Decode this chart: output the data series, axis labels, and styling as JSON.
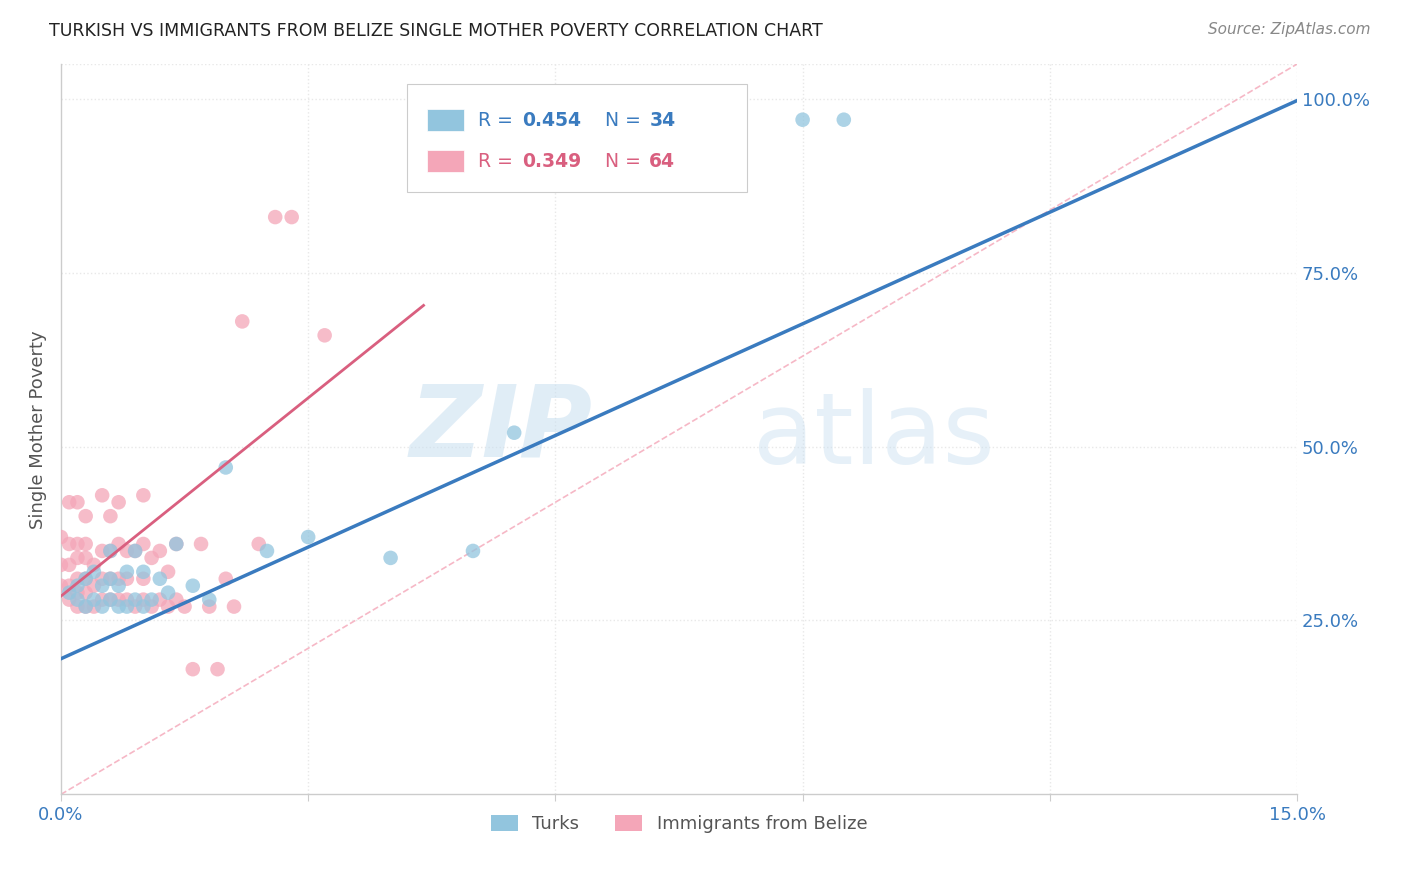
{
  "title": "TURKISH VS IMMIGRANTS FROM BELIZE SINGLE MOTHER POVERTY CORRELATION CHART",
  "source": "Source: ZipAtlas.com",
  "ylabel_label": "Single Mother Poverty",
  "x_min": 0.0,
  "x_max": 0.15,
  "y_min": 0.0,
  "y_max": 1.05,
  "blue_color": "#92c5de",
  "pink_color": "#f4a6b8",
  "blue_line_color": "#3a7bbf",
  "pink_line_color": "#d95f7f",
  "diagonal_line_color": "#f4a6b8",
  "blue_R": "0.454",
  "blue_N": "34",
  "pink_R": "0.349",
  "pink_N": "64",
  "blue_label": "Turks",
  "pink_label": "Immigrants from Belize",
  "turks_x": [
    0.001,
    0.002,
    0.002,
    0.003,
    0.003,
    0.004,
    0.004,
    0.005,
    0.005,
    0.006,
    0.006,
    0.006,
    0.007,
    0.007,
    0.008,
    0.008,
    0.009,
    0.009,
    0.01,
    0.01,
    0.011,
    0.012,
    0.013,
    0.014,
    0.016,
    0.018,
    0.02,
    0.025,
    0.03,
    0.04,
    0.05,
    0.055,
    0.09,
    0.095
  ],
  "turks_y": [
    0.29,
    0.28,
    0.3,
    0.27,
    0.31,
    0.28,
    0.32,
    0.27,
    0.3,
    0.28,
    0.31,
    0.35,
    0.27,
    0.3,
    0.27,
    0.32,
    0.28,
    0.35,
    0.27,
    0.32,
    0.28,
    0.31,
    0.29,
    0.36,
    0.3,
    0.28,
    0.47,
    0.35,
    0.37,
    0.34,
    0.35,
    0.52,
    0.97,
    0.97
  ],
  "belize_x": [
    0.0,
    0.0,
    0.0,
    0.001,
    0.001,
    0.001,
    0.001,
    0.001,
    0.002,
    0.002,
    0.002,
    0.002,
    0.002,
    0.002,
    0.003,
    0.003,
    0.003,
    0.003,
    0.003,
    0.003,
    0.004,
    0.004,
    0.004,
    0.005,
    0.005,
    0.005,
    0.005,
    0.006,
    0.006,
    0.006,
    0.006,
    0.007,
    0.007,
    0.007,
    0.007,
    0.008,
    0.008,
    0.008,
    0.009,
    0.009,
    0.01,
    0.01,
    0.01,
    0.01,
    0.011,
    0.011,
    0.012,
    0.012,
    0.013,
    0.013,
    0.014,
    0.014,
    0.015,
    0.016,
    0.017,
    0.018,
    0.019,
    0.02,
    0.021,
    0.022,
    0.024,
    0.026,
    0.028,
    0.032
  ],
  "belize_y": [
    0.3,
    0.33,
    0.37,
    0.28,
    0.3,
    0.33,
    0.36,
    0.42,
    0.27,
    0.29,
    0.31,
    0.34,
    0.36,
    0.42,
    0.27,
    0.29,
    0.31,
    0.34,
    0.36,
    0.4,
    0.27,
    0.3,
    0.33,
    0.28,
    0.31,
    0.35,
    0.43,
    0.28,
    0.31,
    0.35,
    0.4,
    0.28,
    0.31,
    0.36,
    0.42,
    0.28,
    0.31,
    0.35,
    0.27,
    0.35,
    0.28,
    0.31,
    0.36,
    0.43,
    0.27,
    0.34,
    0.28,
    0.35,
    0.27,
    0.32,
    0.28,
    0.36,
    0.27,
    0.18,
    0.36,
    0.27,
    0.18,
    0.31,
    0.27,
    0.68,
    0.36,
    0.83,
    0.83,
    0.66
  ],
  "watermark_zip": "ZIP",
  "watermark_atlas": "atlas",
  "background_color": "#ffffff",
  "grid_color": "#e8e8e8",
  "blue_line_intercept": 0.195,
  "blue_line_slope": 5.35,
  "pink_line_intercept": 0.285,
  "pink_line_slope": 9.5,
  "pink_line_xend": 0.044
}
